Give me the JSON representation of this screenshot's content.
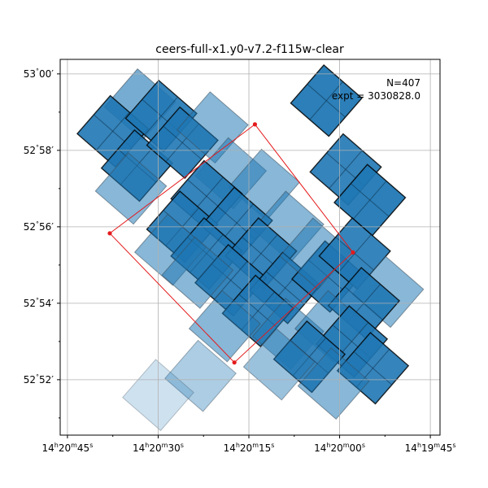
{
  "chart_data": {
    "type": "scatter",
    "title": "ceers-full-x1.y0-v7.2-f115w-clear",
    "annotation": {
      "n_label": "N=407",
      "expt_label": "expt = 3030828.0"
    },
    "x_axis": {
      "ticks": [
        "14h20m45s",
        "14h20m30s",
        "14h20m15s",
        "14h20m00s",
        "14h19m45s"
      ],
      "tick_parts": [
        {
          "h": "14",
          "m": "20",
          "s": "45"
        },
        {
          "h": "14",
          "m": "20",
          "s": "30"
        },
        {
          "h": "14",
          "m": "20",
          "s": "15"
        },
        {
          "h": "14",
          "m": "20",
          "s": "00"
        },
        {
          "h": "14",
          "m": "19",
          "s": "45"
        }
      ],
      "tick_values_sec": [
        45,
        30,
        15,
        0,
        -15
      ],
      "range_sec": [
        46.2,
        -16.6
      ],
      "inverted": true
    },
    "y_axis": {
      "ticks": [
        "52°52′",
        "52°54′",
        "52°56′",
        "52°58′",
        "53°00′"
      ],
      "tick_parts": [
        {
          "d": "52",
          "m": "52′"
        },
        {
          "d": "52",
          "m": "54′"
        },
        {
          "d": "52",
          "m": "56′"
        },
        {
          "d": "52",
          "m": "58′"
        },
        {
          "d": "53",
          "m": "00′"
        }
      ],
      "tick_values_arcmin": [
        52,
        54,
        56,
        58,
        60
      ],
      "range_arcmin": [
        50.55,
        60.38
      ]
    },
    "grid": true,
    "footprint_polygon_red": [
      {
        "ra_sec": 38.0,
        "dec_arcmin": 55.83
      },
      {
        "ra_sec": 14.0,
        "dec_arcmin": 58.68
      },
      {
        "ra_sec": -2.2,
        "dec_arcmin": 55.33
      },
      {
        "ra_sec": 17.4,
        "dec_arcmin": 52.45
      }
    ],
    "exposure_tiles": [
      {
        "ra_sec": 33,
        "dec_arcmin": 59.2,
        "level": 0.6
      },
      {
        "ra_sec": 37.5,
        "dec_arcmin": 58.5,
        "level": 0.95
      },
      {
        "ra_sec": 29.5,
        "dec_arcmin": 58.9,
        "level": 0.95
      },
      {
        "ra_sec": 33.5,
        "dec_arcmin": 57.6,
        "level": 0.95
      },
      {
        "ra_sec": 26,
        "dec_arcmin": 58.2,
        "level": 0.95
      },
      {
        "ra_sec": 21,
        "dec_arcmin": 58.6,
        "level": 0.5
      },
      {
        "ra_sec": 34.5,
        "dec_arcmin": 57.0,
        "level": 0.5
      },
      {
        "ra_sec": 2.2,
        "dec_arcmin": 59.3,
        "level": 1.0
      },
      {
        "ra_sec": -1,
        "dec_arcmin": 57.5,
        "level": 0.95
      },
      {
        "ra_sec": -5,
        "dec_arcmin": 56.7,
        "level": 1.0
      },
      {
        "ra_sec": 18,
        "dec_arcmin": 57.4,
        "level": 0.5
      },
      {
        "ra_sec": 12.5,
        "dec_arcmin": 57.1,
        "level": 0.5
      },
      {
        "ra_sec": 22,
        "dec_arcmin": 56.8,
        "level": 0.95
      },
      {
        "ra_sec": 26,
        "dec_arcmin": 56.0,
        "level": 0.95
      },
      {
        "ra_sec": 17,
        "dec_arcmin": 56.1,
        "level": 0.95
      },
      {
        "ra_sec": 22,
        "dec_arcmin": 55.3,
        "level": 0.95
      },
      {
        "ra_sec": 28,
        "dec_arcmin": 55.4,
        "level": 0.5
      },
      {
        "ra_sec": 8.5,
        "dec_arcmin": 56.0,
        "level": 0.5
      },
      {
        "ra_sec": 13,
        "dec_arcmin": 55.3,
        "level": 0.95
      },
      {
        "ra_sec": 18,
        "dec_arcmin": 54.6,
        "level": 0.95
      },
      {
        "ra_sec": 23.5,
        "dec_arcmin": 54.8,
        "level": 0.5
      },
      {
        "ra_sec": 9,
        "dec_arcmin": 54.4,
        "level": 0.95
      },
      {
        "ra_sec": 13.5,
        "dec_arcmin": 53.8,
        "level": 0.95
      },
      {
        "ra_sec": 19,
        "dec_arcmin": 53.4,
        "level": 0.5
      },
      {
        "ra_sec": 2,
        "dec_arcmin": 54.7,
        "level": 0.95
      },
      {
        "ra_sec": 4,
        "dec_arcmin": 55.3,
        "level": 0.5
      },
      {
        "ra_sec": -2.5,
        "dec_arcmin": 55.3,
        "level": 0.95
      },
      {
        "ra_sec": -8,
        "dec_arcmin": 54.3,
        "level": 0.5
      },
      {
        "ra_sec": -4,
        "dec_arcmin": 54.0,
        "level": 0.95
      },
      {
        "ra_sec": 8.5,
        "dec_arcmin": 53.2,
        "level": 0.5
      },
      {
        "ra_sec": 1.5,
        "dec_arcmin": 53.4,
        "level": 0.5
      },
      {
        "ra_sec": -2,
        "dec_arcmin": 53.0,
        "level": 0.95
      },
      {
        "ra_sec": 5,
        "dec_arcmin": 52.6,
        "level": 0.95
      },
      {
        "ra_sec": 10,
        "dec_arcmin": 52.4,
        "level": 0.4
      },
      {
        "ra_sec": -5.5,
        "dec_arcmin": 52.3,
        "level": 0.95
      },
      {
        "ra_sec": 1,
        "dec_arcmin": 51.9,
        "level": 0.5
      },
      {
        "ra_sec": 23,
        "dec_arcmin": 52.1,
        "level": 0.3
      },
      {
        "ra_sec": 30,
        "dec_arcmin": 51.6,
        "level": 0.12
      }
    ]
  }
}
